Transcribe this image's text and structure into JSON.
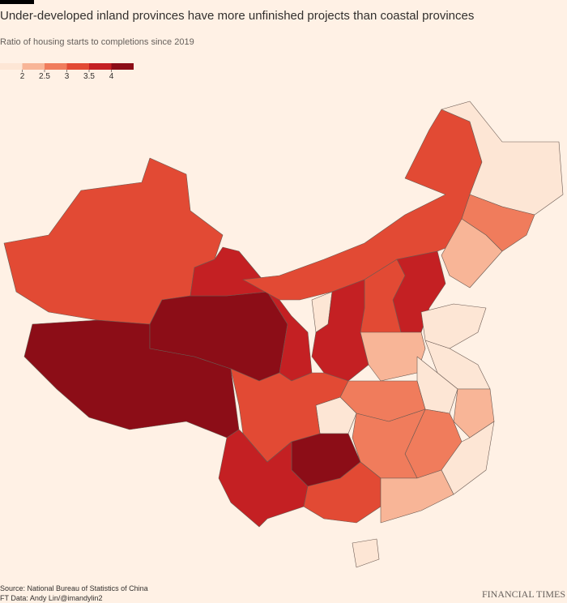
{
  "title": "Under-developed inland provinces have more unfinished projects than coastal provinces",
  "subtitle": "Ratio of housing starts to completions since 2019",
  "legend": {
    "colors": [
      "#fde6d5",
      "#f8b597",
      "#f07c5c",
      "#e24a34",
      "#c42023",
      "#8c0d17"
    ],
    "ticks": [
      2,
      2.5,
      3,
      3.5,
      4
    ]
  },
  "regions": [
    3.2,
    4.3,
    4.3,
    3.7,
    3.2,
    1.8,
    2.7,
    2.2,
    3.7,
    3.2,
    1.8,
    3.7,
    1.8,
    2.2,
    1.8,
    1.8,
    2.7,
    1.8,
    3.2,
    2.2,
    2.7,
    2.7,
    1.8,
    4.3,
    3.7,
    3.2,
    2.2,
    1.8
  ],
  "source": "Source: National Bureau of Statistics of China",
  "credit": "FT Data: Andy Lin/@imandylin2",
  "brand": "FINANCIAL TIMES"
}
